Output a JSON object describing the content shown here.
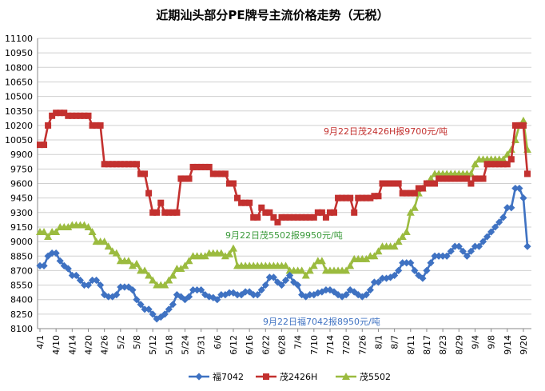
{
  "chart_data": {
    "type": "line",
    "title": "近期汕头部分PE牌号主流价格走势（无税）",
    "xlabel": "",
    "ylabel": "",
    "ylim": [
      8100,
      11100
    ],
    "yticks": [
      8100,
      8250,
      8400,
      8550,
      8700,
      8850,
      9000,
      9150,
      9300,
      9450,
      9600,
      9750,
      9900,
      10050,
      10200,
      10350,
      10500,
      10650,
      10800,
      10950,
      11100
    ],
    "ytick_labels": [
      "8100",
      "8250",
      "8400",
      "8550",
      "8700",
      "8850",
      "9000",
      "9150",
      "9300",
      "9450",
      "9600",
      "9750",
      "9900",
      "10050",
      "10200",
      "10350",
      "10500",
      "10650",
      "10800",
      "10950",
      "11100"
    ],
    "grid": "horizontal",
    "legend_position": "bottom",
    "x_tick_labels": [
      "4/1",
      "4/10",
      "4/14",
      "4/20",
      "4/26",
      "5/2",
      "5/8",
      "5/12",
      "5/18",
      "5/24",
      "5/31",
      "6/6",
      "6/12",
      "6/16",
      "6/22",
      "6/28",
      "7/4",
      "7/10",
      "7/14",
      "7/20",
      "7/26",
      "8/1",
      "8/7",
      "8/11",
      "8/17",
      "8/23",
      "8/29",
      "9/4",
      "9/8",
      "9/14",
      "9/20"
    ],
    "x_tick_index": [
      0,
      4,
      8,
      12,
      16,
      20,
      24,
      28,
      32,
      36,
      40,
      44,
      48,
      52,
      56,
      60,
      64,
      68,
      72,
      76,
      80,
      84,
      88,
      92,
      96,
      100,
      104,
      108,
      112,
      116,
      120
    ],
    "n_points": 122,
    "series": [
      {
        "name": "福7042",
        "color": "#3f72c2",
        "marker": "diamond",
        "values": [
          8750,
          8750,
          8850,
          8880,
          8880,
          8800,
          8750,
          8720,
          8650,
          8650,
          8600,
          8550,
          8550,
          8600,
          8600,
          8550,
          8450,
          8430,
          8430,
          8450,
          8530,
          8530,
          8530,
          8500,
          8400,
          8350,
          8300,
          8300,
          8250,
          8200,
          8220,
          8250,
          8300,
          8350,
          8450,
          8430,
          8400,
          8430,
          8500,
          8500,
          8500,
          8450,
          8430,
          8420,
          8400,
          8450,
          8450,
          8470,
          8470,
          8450,
          8450,
          8480,
          8480,
          8450,
          8450,
          8500,
          8550,
          8630,
          8630,
          8580,
          8550,
          8600,
          8650,
          8580,
          8550,
          8450,
          8430,
          8450,
          8450,
          8470,
          8480,
          8500,
          8500,
          8480,
          8450,
          8430,
          8450,
          8500,
          8480,
          8450,
          8430,
          8450,
          8500,
          8580,
          8580,
          8620,
          8620,
          8630,
          8650,
          8700,
          8780,
          8780,
          8780,
          8700,
          8650,
          8620,
          8700,
          8780,
          8850,
          8850,
          8850,
          8850,
          8900,
          8950,
          8950,
          8900,
          8850,
          8900,
          8950,
          8950,
          9000,
          9050,
          9100,
          9150,
          9200,
          9250,
          9350,
          9350,
          9550,
          9550,
          9450,
          8950
        ]
      },
      {
        "name": "茂2426H",
        "color": "#c3312f",
        "marker": "square",
        "values": [
          10000,
          10000,
          10200,
          10300,
          10330,
          10330,
          10330,
          10300,
          10300,
          10300,
          10300,
          10300,
          10300,
          10200,
          10200,
          10200,
          9800,
          9800,
          9800,
          9800,
          9800,
          9800,
          9800,
          9800,
          9800,
          9700,
          9700,
          9500,
          9300,
          9300,
          9400,
          9300,
          9300,
          9300,
          9300,
          9650,
          9650,
          9650,
          9770,
          9770,
          9770,
          9770,
          9770,
          9700,
          9700,
          9700,
          9700,
          9600,
          9600,
          9450,
          9400,
          9400,
          9400,
          9250,
          9250,
          9350,
          9300,
          9300,
          9250,
          9200,
          9250,
          9250,
          9250,
          9250,
          9250,
          9250,
          9250,
          9250,
          9250,
          9300,
          9300,
          9250,
          9300,
          9300,
          9450,
          9450,
          9450,
          9450,
          9300,
          9450,
          9450,
          9450,
          9450,
          9470,
          9470,
          9600,
          9600,
          9600,
          9600,
          9600,
          9500,
          9500,
          9500,
          9500,
          9550,
          9550,
          9600,
          9600,
          9600,
          9650,
          9650,
          9650,
          9650,
          9650,
          9650,
          9650,
          9650,
          9600,
          9650,
          9650,
          9650,
          9800,
          9800,
          9800,
          9800,
          9800,
          9800,
          9850,
          10200,
          10200,
          10200,
          9700
        ]
      },
      {
        "name": "茂5502",
        "color": "#9bbb3f",
        "marker": "triangle",
        "values": [
          9100,
          9100,
          9050,
          9100,
          9100,
          9150,
          9150,
          9150,
          9170,
          9170,
          9170,
          9170,
          9150,
          9100,
          9000,
          9000,
          9000,
          8950,
          8900,
          8880,
          8800,
          8800,
          8800,
          8750,
          8770,
          8700,
          8700,
          8650,
          8600,
          8550,
          8550,
          8550,
          8600,
          8650,
          8720,
          8720,
          8750,
          8800,
          8850,
          8850,
          8850,
          8850,
          8880,
          8880,
          8880,
          8880,
          8850,
          8870,
          8930,
          8750,
          8750,
          8750,
          8750,
          8750,
          8750,
          8750,
          8750,
          8750,
          8750,
          8750,
          8750,
          8750,
          8700,
          8700,
          8700,
          8700,
          8650,
          8700,
          8750,
          8800,
          8800,
          8700,
          8700,
          8700,
          8700,
          8700,
          8700,
          8750,
          8820,
          8820,
          8820,
          8820,
          8850,
          8850,
          8900,
          8950,
          8950,
          8950,
          8950,
          9000,
          9050,
          9100,
          9300,
          9350,
          9500,
          9550,
          9600,
          9650,
          9700,
          9700,
          9700,
          9700,
          9700,
          9700,
          9700,
          9700,
          9700,
          9700,
          9800,
          9850,
          9850,
          9850,
          9850,
          9850,
          9850,
          9850,
          9900,
          9950,
          10050,
          10200,
          10250,
          9950
        ]
      }
    ],
    "annotations": [
      {
        "text": "9月22日茂2426H报9700元/吨",
        "series": "茂2426H",
        "color": "#c3312f"
      },
      {
        "text": "9月22日茂5502报9950元/吨",
        "series": "茂5502",
        "color": "#3a9a3a"
      },
      {
        "text": "9月22日福7042报8950元/吨",
        "series": "福7042",
        "color": "#3f72c2"
      }
    ]
  }
}
